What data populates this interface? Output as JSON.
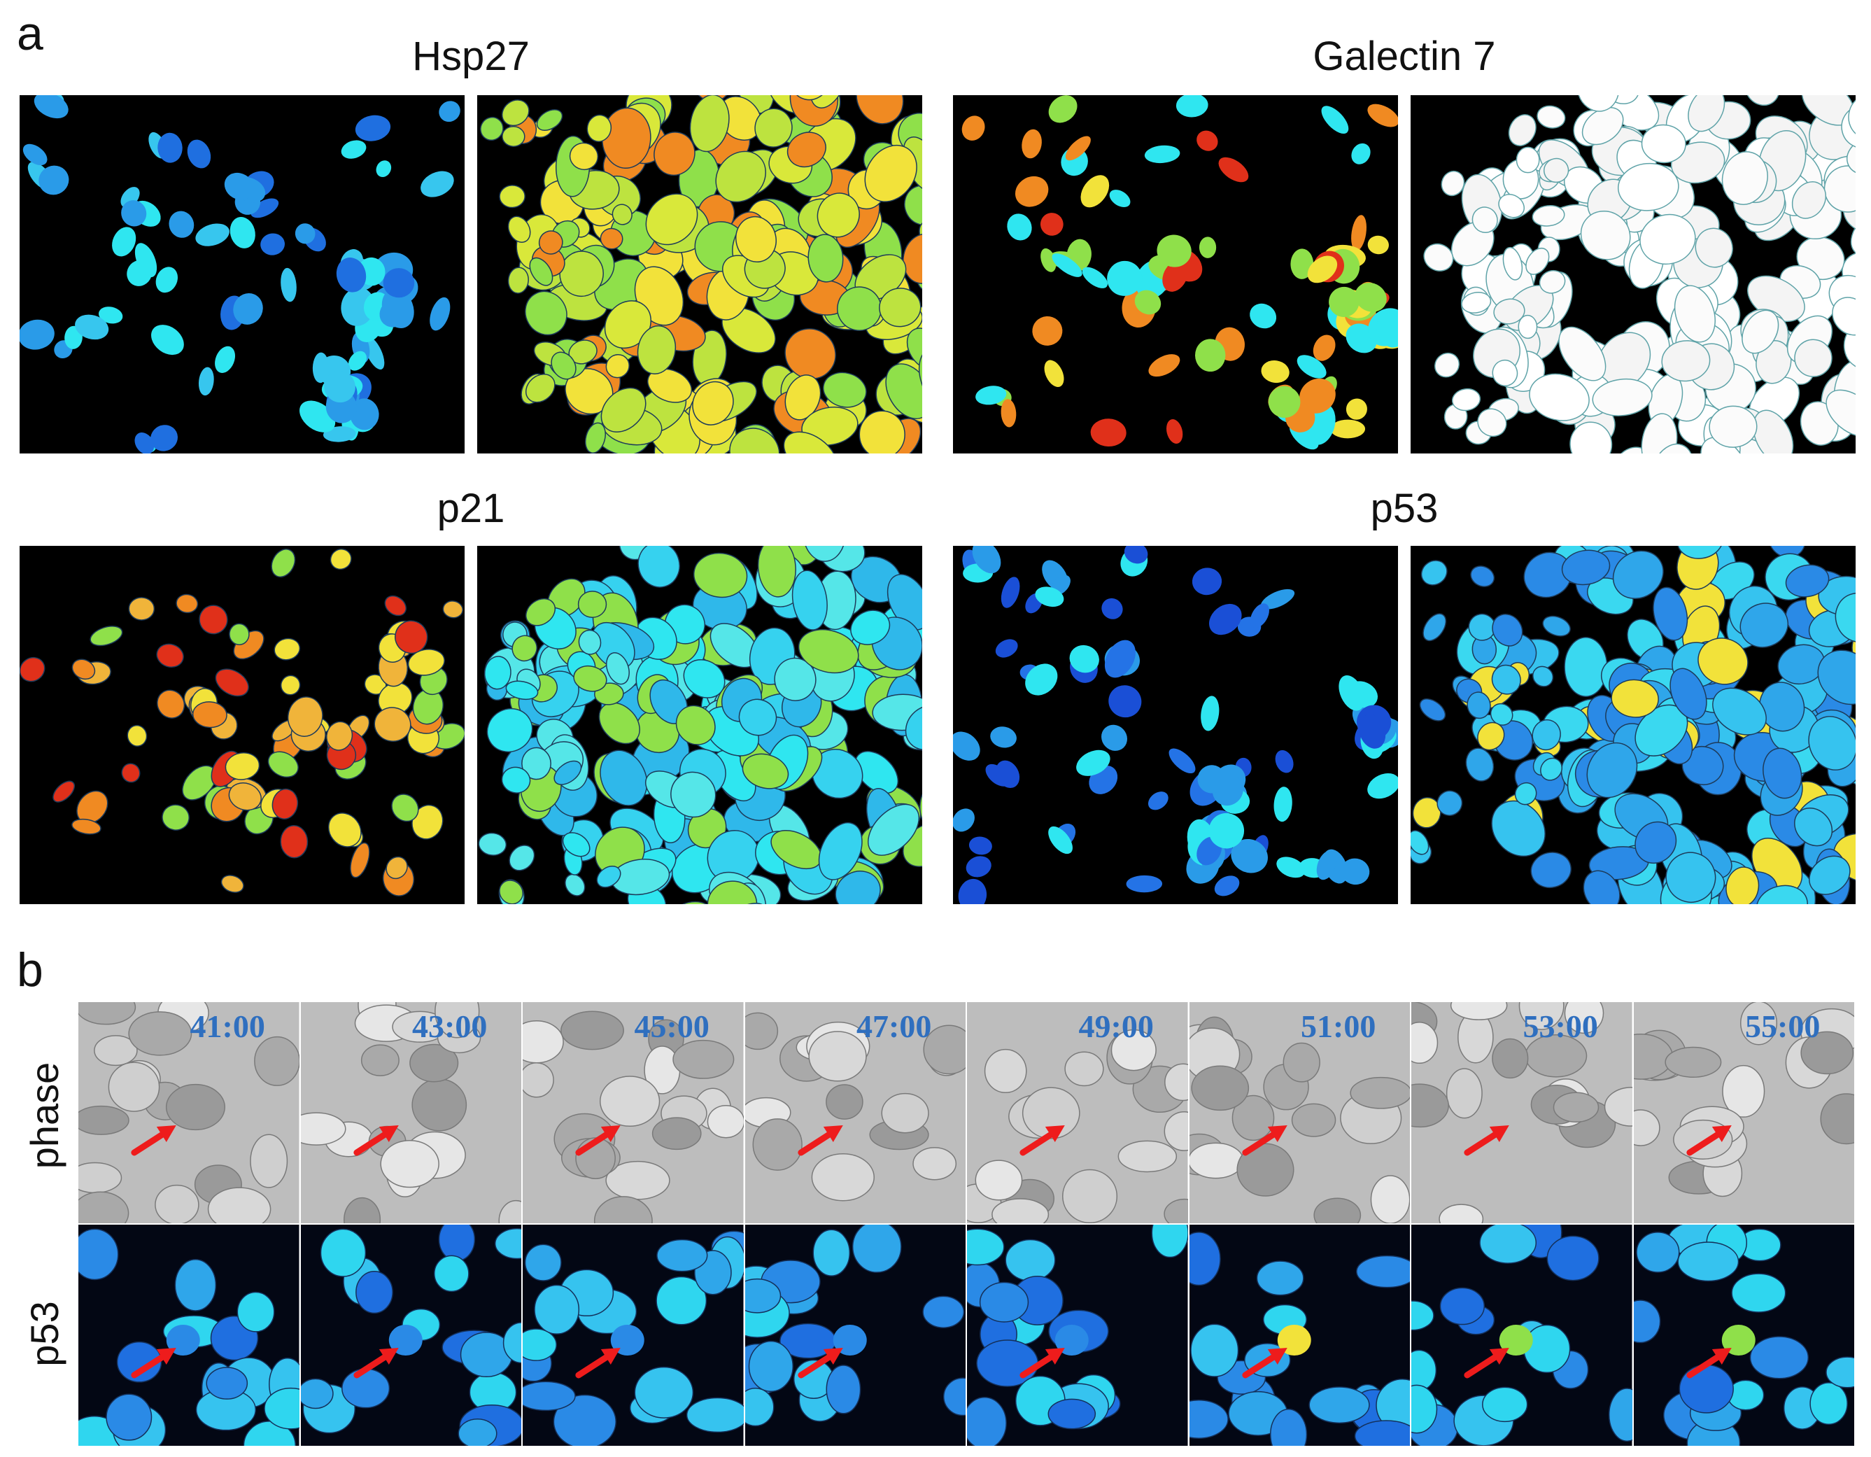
{
  "panel_a": {
    "letter": "a",
    "markers": [
      {
        "title": "Hsp27",
        "left_scheme": "sparse-blue",
        "right_scheme": "dense-green-orange"
      },
      {
        "title": "Galectin 7",
        "left_scheme": "sparse-red-orange",
        "right_scheme": "dense-white"
      },
      {
        "title": "p21",
        "left_scheme": "sparse-orange",
        "right_scheme": "dense-cyan"
      },
      {
        "title": "p53",
        "left_scheme": "sparse-deep-blue",
        "right_scheme": "dense-blue"
      }
    ]
  },
  "panel_b": {
    "letter": "b",
    "rows": [
      {
        "label": "phase",
        "style": "grayscale"
      },
      {
        "label": "p53",
        "style": "blue-colormap"
      }
    ],
    "timepoints": [
      "41:00",
      "43:00",
      "45:00",
      "47:00",
      "49:00",
      "51:00",
      "53:00",
      "55:00"
    ],
    "timestamp_color": "#2f6fbf",
    "arrow_color": "#ee1c1c"
  },
  "colors": {
    "background": "#000000",
    "jet_blue": "#1f6fe0",
    "jet_cyan": "#2fe6f0",
    "jet_green": "#8fe04a",
    "jet_yellow": "#f2e23a",
    "jet_orange": "#f08a22",
    "jet_red": "#e0301a"
  }
}
